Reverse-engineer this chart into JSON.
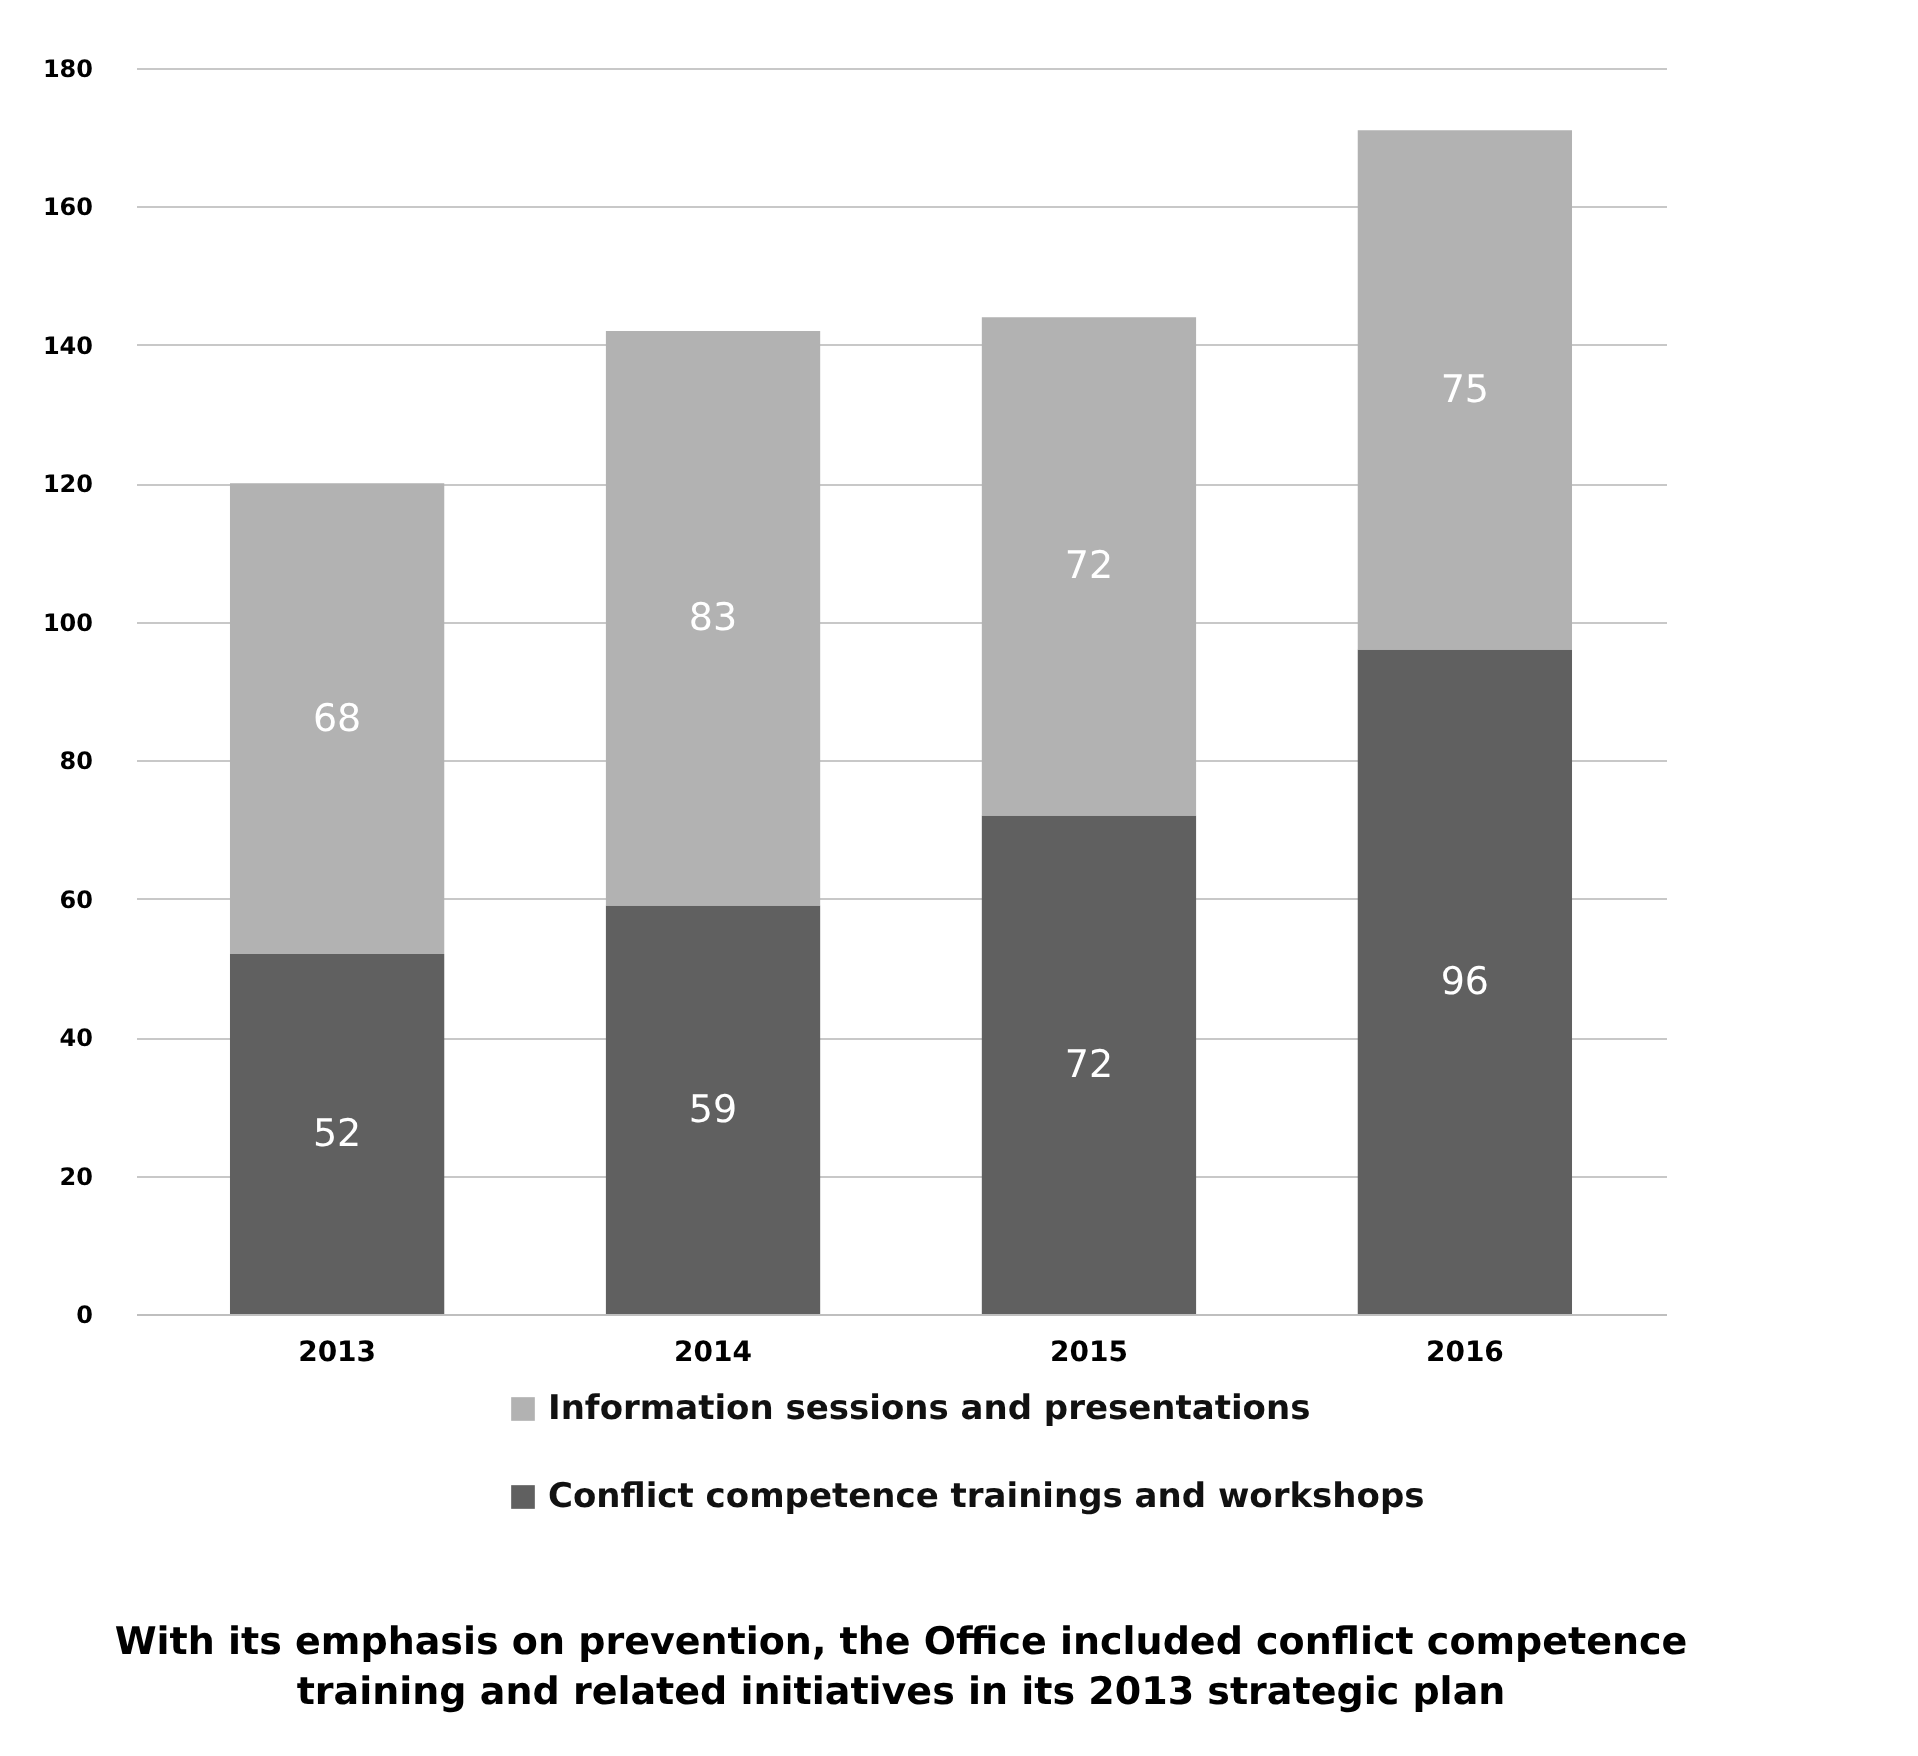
{
  "chart_data": {
    "type": "bar",
    "stacked": true,
    "categories": [
      "2013",
      "2014",
      "2015",
      "2016"
    ],
    "series": [
      {
        "name": "Conflict competence trainings and workshops",
        "color": "#606060",
        "values": [
          52,
          59,
          72,
          96
        ]
      },
      {
        "name": "Information sessions and presentations",
        "color": "#b2b2b2",
        "values": [
          68,
          83,
          72,
          75
        ]
      }
    ],
    "ylim": [
      0,
      180
    ],
    "yticks": [
      0,
      20,
      40,
      60,
      80,
      100,
      120,
      140,
      160,
      180
    ],
    "grid": "y",
    "legend": "bottom",
    "data_labels": true,
    "title": "With its emphasis on prevention, the Office included conflict competence training and related initiatives in its 2013 strategic plan"
  }
}
